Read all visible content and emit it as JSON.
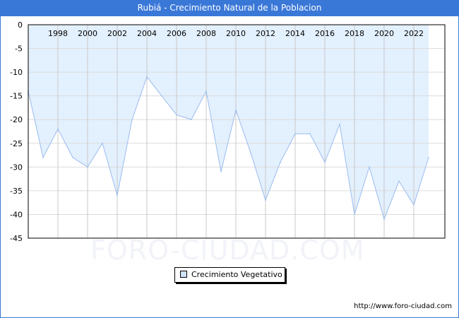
{
  "title": "Rubiá - Crecimiento Natural de la Poblacion",
  "watermark": "FORO-CIUDAD.COM",
  "url": "http://www.foro-ciudad.com",
  "colors": {
    "line": "#9bbcee",
    "fill": "#e3f0fe",
    "title_bg": "#3a78d8"
  },
  "chart_data": {
    "type": "area",
    "title": "Rubiá - Crecimiento Natural de la Poblacion",
    "xlabel": "",
    "ylabel": "",
    "x": [
      1996,
      1997,
      1998,
      1999,
      2000,
      2001,
      2002,
      2003,
      2004,
      2005,
      2006,
      2007,
      2008,
      2009,
      2010,
      2011,
      2012,
      2013,
      2014,
      2015,
      2016,
      2017,
      2018,
      2019,
      2020,
      2021,
      2022,
      2023
    ],
    "series": [
      {
        "name": "Crecimiento Vegetativo",
        "values": [
          -14,
          -28,
          -22,
          -28,
          -30,
          -25,
          -36,
          -20,
          -11,
          -15,
          -19,
          -20,
          -14,
          -31,
          -18,
          -27,
          -37,
          -29,
          -23,
          -23,
          -29,
          -21,
          -40,
          -30,
          -41,
          -33,
          -38,
          -28
        ]
      }
    ],
    "xticks": [
      "1998",
      "2000",
      "2002",
      "2004",
      "2006",
      "2008",
      "2010",
      "2012",
      "2014",
      "2016",
      "2018",
      "2020",
      "2022"
    ],
    "yticks": [
      "0",
      "-5",
      "-10",
      "-15",
      "-20",
      "-25",
      "-30",
      "-35",
      "-40",
      "-45"
    ],
    "ylim": [
      -45,
      0
    ],
    "xlim": [
      1996,
      2024
    ],
    "grid": true,
    "legend": "bottom-center"
  }
}
